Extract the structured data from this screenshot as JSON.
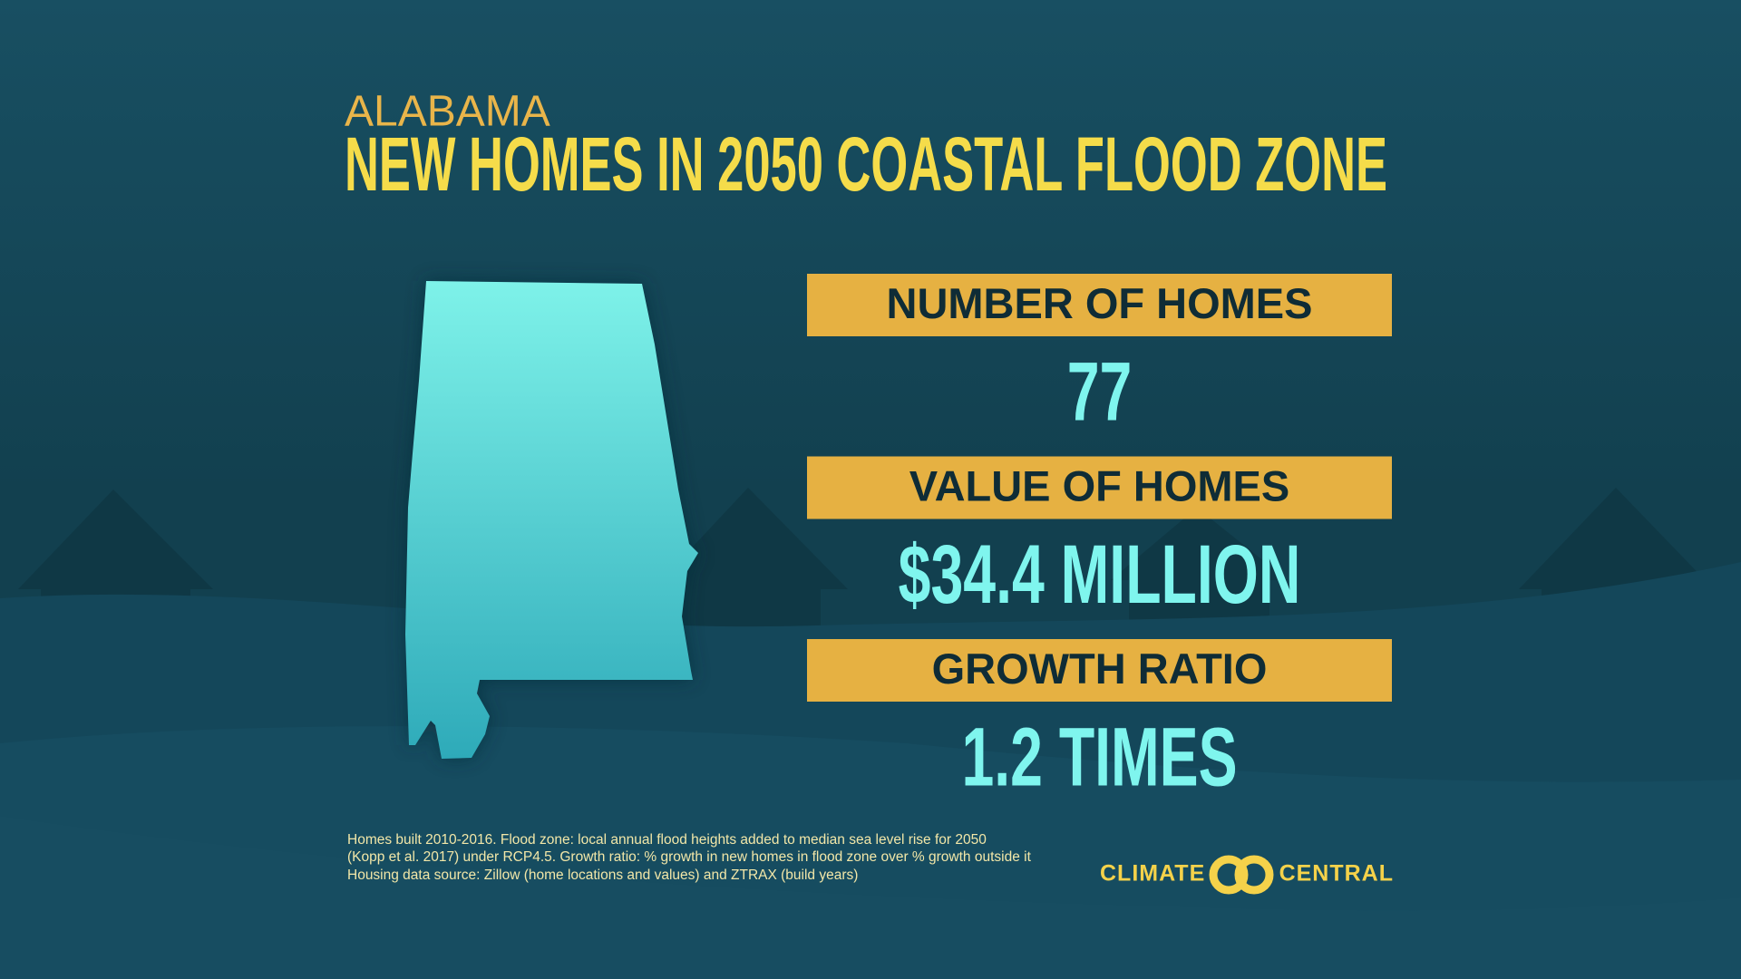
{
  "header": {
    "state": "ALABAMA",
    "title": "NEW HOMES IN 2050 COASTAL FLOOD ZONE"
  },
  "stats": [
    {
      "label": "NUMBER OF HOMES",
      "value": "77"
    },
    {
      "label": "VALUE OF HOMES",
      "value": "$34.4 MILLION"
    },
    {
      "label": "GROWTH RATIO",
      "value": "1.2 TIMES"
    }
  ],
  "footnote": [
    "Homes built 2010-2016. Flood zone: local annual flood heights added to median sea level rise for 2050",
    "(Kopp et al. 2017) under RCP4.5. Growth ratio: % growth in new homes in flood zone over % growth outside it",
    "Housing data source: Zillow (home locations and values) and ZTRAX (build years)"
  ],
  "logo": {
    "left": "CLIMATE",
    "right": "CENTRAL"
  }
}
